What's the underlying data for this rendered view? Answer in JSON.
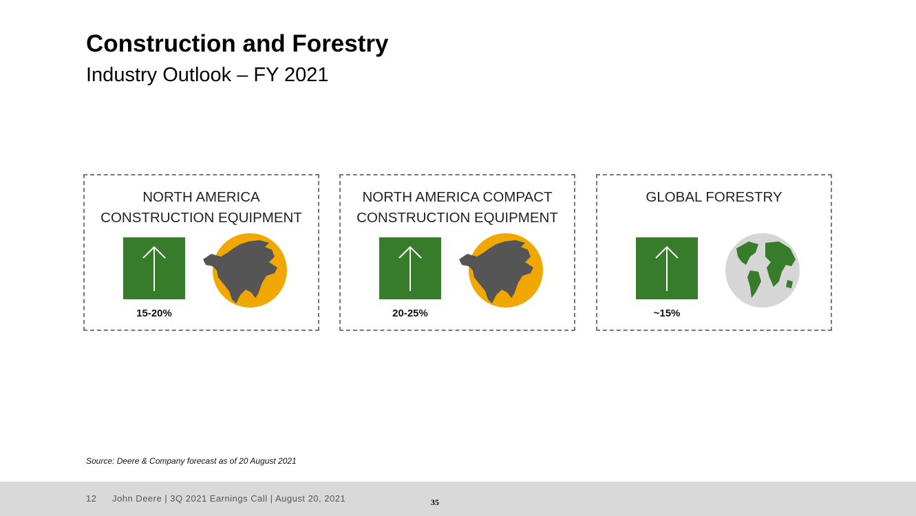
{
  "header": {
    "title": "Construction and Forestry",
    "subtitle": "Industry Outlook – FY 2021"
  },
  "cards": [
    {
      "title": [
        "NORTH AMERICA",
        "CONSTRUCTION EQUIPMENT"
      ],
      "outlook": "15-20%",
      "icon": "north-america"
    },
    {
      "title": [
        "NORTH AMERICA COMPACT",
        "CONSTRUCTION EQUIPMENT"
      ],
      "outlook": "20-25%",
      "icon": "north-america"
    },
    {
      "title": [
        "GLOBAL FORESTRY"
      ],
      "outlook": "~15%",
      "icon": "globe"
    }
  ],
  "source": "Source: Deere & Company forecast as of 20 August 2021",
  "footer": {
    "page": "12",
    "text": "John Deere | 3Q 2021 Earnings Call | August 20, 2021",
    "slide_number": "35"
  }
}
